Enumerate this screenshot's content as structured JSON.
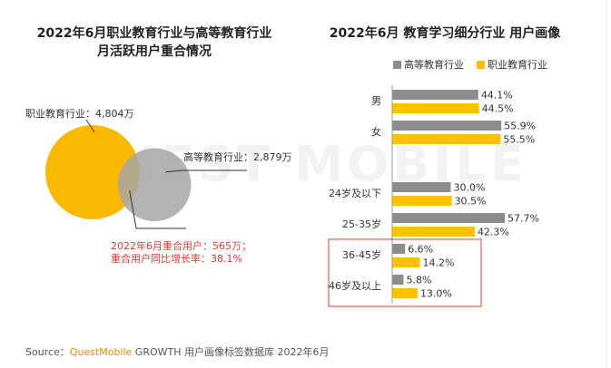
{
  "chart_data": [
    {
      "type": "venn",
      "title": [
        "2022年6月职业教育行业与高等教育行业",
        "月活跃用户重合情况"
      ],
      "sets": [
        {
          "label": "职业教育行业：4,804万",
          "value": 4804,
          "color": "#f9b900"
        },
        {
          "label": "高等教育行业：2,879万",
          "value": 2879,
          "color": "#a6a6a6"
        }
      ],
      "overlap": 565,
      "annotations": [
        "2022年6月重合用户：565万；",
        "重合用户同比增长率：38.1%"
      ],
      "annotation_color": "#e8382f"
    },
    {
      "type": "hbar",
      "title": "2022年6月 教育学习细分行业 用户画像",
      "categories": [
        "男",
        "女",
        "24岁及以下",
        "25-35岁",
        "36-45岁",
        "46岁及以上"
      ],
      "xlim": [
        0,
        60
      ],
      "series": [
        {
          "name": "高等教育行业",
          "color": "#8c8c8c",
          "values": [
            44.1,
            55.9,
            30.0,
            57.7,
            6.6,
            5.8
          ],
          "value_labels": [
            "44.1%",
            "55.9%",
            "30.0%",
            "57.7%",
            "6.6%",
            "5.8%"
          ]
        },
        {
          "name": "职业教育行业",
          "color": "#ffc000",
          "values": [
            44.5,
            55.5,
            30.5,
            42.3,
            14.2,
            13.0
          ],
          "value_labels": [
            "44.5%",
            "55.5%",
            "30.5%",
            "42.3%",
            "14.2%",
            "13.0%"
          ]
        }
      ]
    }
  ],
  "watermark": "QUEST MOBILE",
  "source": {
    "prefix": "Source：",
    "brand": "QuestMobile",
    "rest": " GROWTH 用户画像标签数据库 2022年6月"
  }
}
